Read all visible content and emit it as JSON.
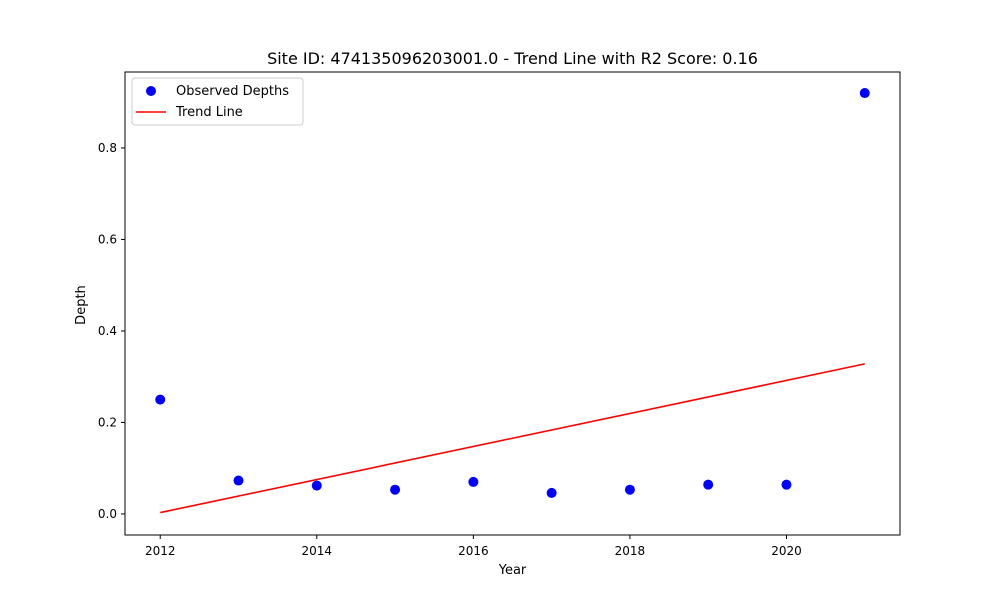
{
  "chart_data": {
    "type": "scatter",
    "title": "Site ID: 474135096203001.0 - Trend Line with R2 Score: 0.16",
    "xlabel": "Year",
    "ylabel": "Depth",
    "xlim": [
      2011.55,
      2021.45
    ],
    "ylim": [
      -0.046,
      0.966
    ],
    "xticks": [
      2012,
      2014,
      2016,
      2018,
      2020
    ],
    "xtick_labels": [
      "2012",
      "2014",
      "2016",
      "2018",
      "2020"
    ],
    "yticks": [
      0.0,
      0.2,
      0.4,
      0.6,
      0.8
    ],
    "ytick_labels": [
      "0.0",
      "0.2",
      "0.4",
      "0.6",
      "0.8"
    ],
    "grid": false,
    "legend_position": "top-left",
    "series": [
      {
        "name": "Observed Depths",
        "kind": "scatter",
        "color": "#0000ff",
        "x": [
          2012,
          2013,
          2014,
          2015,
          2016,
          2017,
          2018,
          2019,
          2020,
          2021
        ],
        "y": [
          0.25,
          0.073,
          0.062,
          0.053,
          0.07,
          0.046,
          0.053,
          0.064,
          0.064,
          0.92
        ]
      },
      {
        "name": "Trend Line",
        "kind": "line",
        "color": "#ff0000",
        "x": [
          2012,
          2021
        ],
        "y": [
          0.003,
          0.328
        ]
      }
    ]
  }
}
